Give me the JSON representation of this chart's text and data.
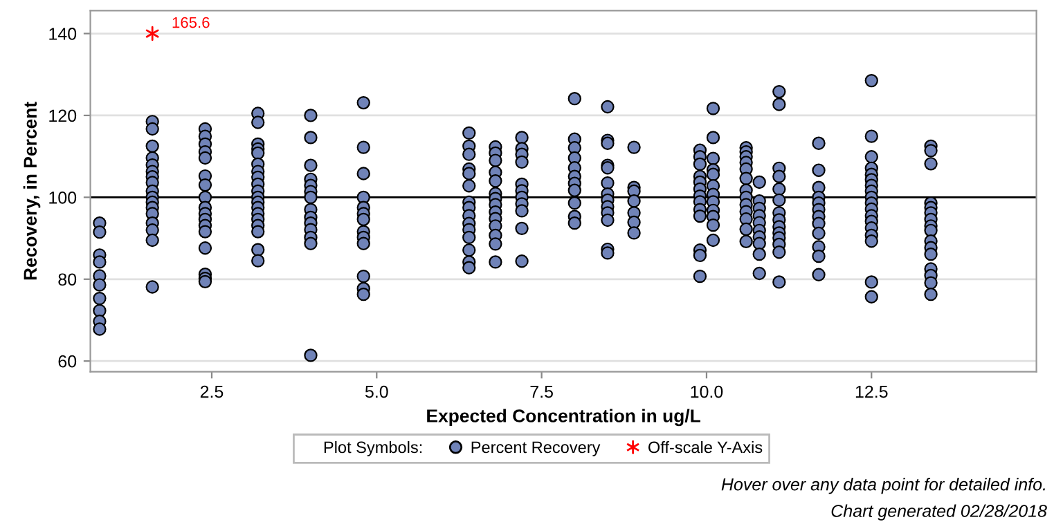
{
  "chart_data": {
    "type": "scatter",
    "xlabel": "Expected Concentration in ug/L",
    "ylabel": "Recovery, in Percent",
    "legend_title": "Plot Symbols:",
    "legend": "bottom",
    "grid": "y",
    "xlim": [
      0.66,
      15.0
    ],
    "ylim": [
      57.4,
      145.6
    ],
    "xticks": [
      2.5,
      {
        "value": 5,
        "label": "5.0"
      },
      7.5,
      {
        "value": 10,
        "label": "10.0"
      },
      12.5
    ],
    "yticks": [
      60,
      80,
      100,
      120,
      140
    ],
    "ref_lines": [
      {
        "axis": "y",
        "value": 100,
        "color": "#000000",
        "line_style": "solid"
      }
    ],
    "annotations": [
      {
        "text": "165.6",
        "x": 1.6,
        "y": 140
      },
      "Hover over any data point for detailed info.",
      "Chart generated 02/28/2018"
    ],
    "series": [
      {
        "name": "Percent Recovery",
        "color": "#7083b8",
        "marker": "circle",
        "x": [
          0.8,
          0.8,
          0.8,
          0.8,
          0.8,
          0.8,
          0.8,
          0.8,
          0.8,
          0.8,
          1.6,
          1.6,
          1.6,
          1.6,
          1.6,
          1.6,
          1.6,
          1.6,
          1.6,
          1.6,
          1.6,
          1.6,
          1.6,
          1.6,
          1.6,
          1.6,
          1.6,
          2.4,
          2.4,
          2.4,
          2.4,
          2.4,
          2.4,
          2.4,
          2.4,
          2.4,
          2.4,
          2.4,
          2.4,
          2.4,
          2.4,
          2.4,
          2.4,
          2.4,
          3.2,
          3.2,
          3.2,
          3.2,
          3.2,
          3.2,
          3.2,
          3.2,
          3.2,
          3.2,
          3.2,
          3.2,
          3.2,
          3.2,
          3.2,
          3.2,
          3.2,
          3.2,
          3.2,
          4.0,
          4.0,
          4.0,
          4.0,
          4.0,
          4.0,
          4.0,
          4.0,
          4.0,
          4.0,
          4.0,
          4.0,
          4.0,
          4.0,
          4.8,
          4.8,
          4.8,
          4.8,
          4.8,
          4.8,
          4.8,
          4.8,
          4.8,
          4.8,
          4.8,
          4.8,
          4.8,
          6.4,
          6.4,
          6.4,
          6.4,
          6.4,
          6.4,
          6.4,
          6.4,
          6.4,
          6.4,
          6.4,
          6.4,
          6.4,
          6.4,
          6.4,
          6.8,
          6.8,
          6.8,
          6.8,
          6.8,
          6.8,
          6.8,
          6.8,
          6.8,
          6.8,
          6.8,
          6.8,
          6.8,
          6.8,
          7.2,
          7.2,
          7.2,
          7.2,
          7.2,
          7.2,
          7.2,
          7.2,
          7.2,
          7.2,
          7.2,
          8.0,
          8.0,
          8.0,
          8.0,
          8.0,
          8.0,
          8.0,
          8.0,
          8.0,
          8.0,
          8.0,
          8.5,
          8.5,
          8.5,
          8.5,
          8.5,
          8.5,
          8.5,
          8.5,
          8.5,
          8.5,
          8.5,
          8.5,
          8.5,
          8.9,
          8.9,
          8.9,
          8.9,
          8.9,
          8.9,
          8.9,
          9.9,
          9.9,
          9.9,
          9.9,
          9.9,
          9.9,
          9.9,
          9.9,
          9.9,
          9.9,
          9.9,
          9.9,
          9.9,
          10.1,
          10.1,
          10.1,
          10.1,
          10.1,
          10.1,
          10.1,
          10.1,
          10.1,
          10.1,
          10.1,
          10.1,
          10.6,
          10.6,
          10.6,
          10.6,
          10.6,
          10.6,
          10.6,
          10.6,
          10.6,
          10.6,
          10.6,
          10.6,
          10.6,
          10.8,
          10.8,
          10.8,
          10.8,
          10.8,
          10.8,
          10.8,
          10.8,
          10.8,
          10.8,
          11.1,
          11.1,
          11.1,
          11.1,
          11.1,
          11.1,
          11.1,
          11.1,
          11.1,
          11.1,
          11.1,
          11.1,
          11.1,
          11.1,
          11.7,
          11.7,
          11.7,
          11.7,
          11.7,
          11.7,
          11.7,
          11.7,
          11.7,
          11.7,
          11.7,
          11.7,
          12.5,
          12.5,
          12.5,
          12.5,
          12.5,
          12.5,
          12.5,
          12.5,
          12.5,
          12.5,
          12.5,
          12.5,
          12.5,
          12.5,
          12.5,
          12.5,
          12.5,
          12.5,
          13.4,
          13.4,
          13.4,
          13.4,
          13.4,
          13.4,
          13.4,
          13.4,
          13.4,
          13.4,
          13.4,
          13.4,
          13.4,
          13.4,
          13.4,
          13.4
        ],
        "values": [
          93.7,
          91.5,
          85.9,
          84.2,
          80.8,
          78.6,
          75.3,
          72.3,
          69.7,
          67.8,
          118.5,
          116.7,
          112.5,
          109.6,
          107.9,
          106.3,
          105.0,
          103.6,
          101.5,
          100.0,
          98.8,
          97.5,
          96.0,
          93.7,
          92.0,
          89.5,
          78.1,
          116.7,
          114.9,
          113.0,
          111.1,
          109.6,
          105.2,
          103.0,
          100.0,
          97.5,
          96.0,
          94.6,
          93.1,
          91.6,
          87.6,
          81.2,
          80.2,
          79.4,
          120.5,
          118.3,
          113.0,
          111.8,
          110.8,
          108.1,
          106.3,
          104.9,
          103.2,
          101.5,
          100.0,
          98.8,
          97.5,
          96.0,
          94.6,
          93.1,
          91.6,
          87.2,
          84.5,
          120.0,
          114.6,
          107.8,
          104.4,
          102.9,
          101.4,
          100.0,
          97.0,
          95.1,
          93.7,
          92.1,
          90.2,
          88.7,
          61.4,
          123.1,
          112.2,
          105.8,
          100.0,
          97.5,
          96.0,
          94.6,
          91.6,
          90.2,
          88.7,
          80.7,
          77.7,
          76.3,
          115.7,
          112.5,
          110.5,
          106.9,
          105.8,
          102.8,
          98.8,
          97.5,
          95.5,
          93.6,
          92.1,
          90.2,
          87.1,
          84.2,
          82.8,
          112.3,
          110.8,
          109.0,
          106.1,
          104.0,
          100.9,
          99.7,
          98.2,
          96.4,
          94.8,
          93.0,
          90.7,
          88.6,
          84.2,
          114.6,
          111.9,
          110.5,
          108.6,
          103.2,
          101.6,
          100.0,
          98.4,
          96.7,
          92.4,
          84.4,
          124.1,
          114.2,
          112.1,
          109.6,
          107.2,
          105.1,
          103.4,
          101.7,
          98.6,
          95.3,
          93.7,
          122.1,
          113.9,
          113.2,
          107.8,
          107.2,
          103.5,
          100.8,
          99.3,
          97.7,
          96.2,
          94.4,
          87.3,
          86.4,
          112.2,
          102.4,
          101.5,
          99.1,
          96.2,
          93.9,
          91.3,
          111.5,
          109.9,
          108.1,
          105.1,
          103.7,
          102.0,
          100.3,
          98.9,
          97.0,
          95.4,
          87.1,
          85.8,
          80.7,
          121.7,
          114.6,
          109.5,
          106.7,
          105.6,
          102.8,
          100.7,
          98.9,
          96.8,
          95.3,
          93.2,
          89.5,
          112.1,
          111.1,
          109.9,
          108.5,
          106.9,
          104.6,
          101.7,
          100.0,
          98.2,
          96.5,
          94.7,
          92.2,
          89.2,
          103.7,
          99.1,
          97.3,
          95.5,
          93.8,
          91.9,
          90.3,
          88.7,
          86.1,
          81.4,
          125.8,
          122.7,
          107.1,
          105.1,
          102.0,
          99.3,
          96.2,
          94.5,
          92.8,
          91.3,
          90.1,
          88.5,
          86.6,
          79.3,
          113.2,
          106.6,
          102.4,
          100.0,
          98.6,
          97.0,
          95.3,
          93.6,
          91.2,
          87.9,
          85.6,
          81.1,
          128.5,
          114.9,
          109.9,
          107.1,
          105.6,
          104.3,
          102.9,
          101.5,
          100.0,
          98.6,
          97.1,
          95.5,
          94.1,
          92.5,
          90.7,
          89.3,
          79.3,
          75.7,
          112.5,
          111.4,
          108.2,
          98.6,
          97.5,
          96.2,
          94.6,
          93.0,
          91.9,
          89.3,
          87.7,
          86.1,
          82.5,
          80.9,
          79.1,
          76.3
        ]
      },
      {
        "name": "Off-scale Y-Axis",
        "color": "#ff0000",
        "marker": "cross",
        "x": [
          1.6
        ],
        "values": [
          140
        ]
      }
    ]
  }
}
